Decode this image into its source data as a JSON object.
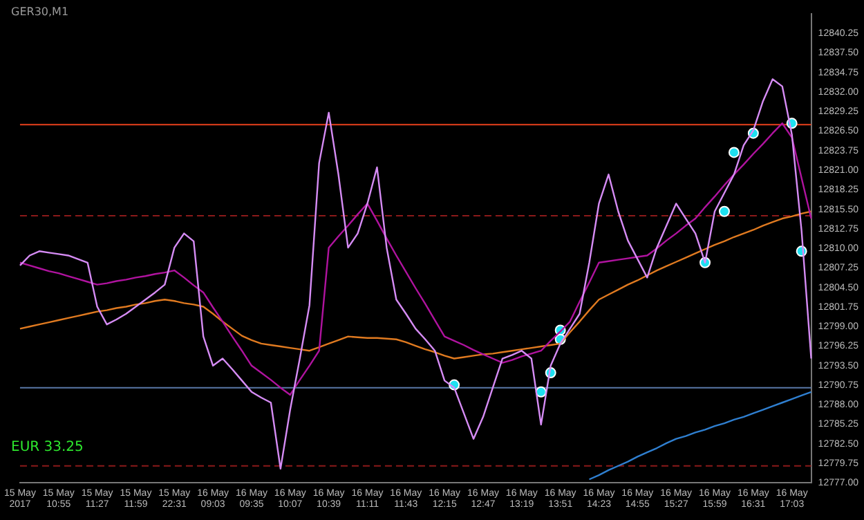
{
  "chart_data": {
    "type": "line",
    "title": "GER30,M1",
    "annotations": [
      "EUR 33.25"
    ],
    "categories": [
      "15 May 2017",
      null,
      null,
      null,
      "15 May 10:55",
      null,
      null,
      null,
      "15 May 11:27",
      null,
      null,
      null,
      "15 May 11:59",
      null,
      null,
      null,
      "15 May 22:31",
      null,
      null,
      null,
      "16 May 09:03",
      null,
      null,
      null,
      "16 May 09:35",
      null,
      null,
      null,
      "16 May 10:07",
      null,
      null,
      null,
      "16 May 10:39",
      null,
      null,
      null,
      "16 May 11:11",
      null,
      null,
      null,
      "16 May 11:43",
      null,
      null,
      null,
      "16 May 12:15",
      null,
      null,
      null,
      "16 May 12:47",
      null,
      null,
      null,
      "16 May 13:19",
      null,
      null,
      null,
      "16 May 13:51",
      null,
      null,
      null,
      "16 May 14:23",
      null,
      null,
      null,
      "16 May 14:55",
      null,
      null,
      null,
      "16 May 15:27",
      null,
      null,
      null,
      "16 May 15:59",
      null,
      null,
      null,
      "16 May 16:31",
      null,
      null,
      null,
      "16 May 17:03",
      null,
      null
    ],
    "series": [
      {
        "color": "#d68cf5",
        "values": [
          12807.6,
          12809.0,
          12809.6,
          12809.4,
          12809.2,
          12809.0,
          12808.5,
          12808.0,
          12801.8,
          12799.3,
          12800.0,
          12800.8,
          12801.8,
          12802.8,
          12803.8,
          12804.9,
          12810.1,
          12812.1,
          12811.0,
          12797.6,
          12793.5,
          12794.5,
          12793.0,
          12791.4,
          12789.8,
          12789.0,
          12788.3,
          12779.0,
          12787.3,
          12794.5,
          12802.0,
          12822.0,
          12829.1,
          12820.4,
          12810.1,
          12812.1,
          12816.3,
          12821.4,
          12810.1,
          12802.8,
          12800.8,
          12798.7,
          12797.2,
          12795.6,
          12791.4,
          12790.4,
          12786.8,
          12783.2,
          12786.3,
          12790.4,
          12794.5,
          12795.0,
          12795.6,
          12794.5,
          12785.2,
          12793.5,
          12796.6,
          12798.7,
          12800.8,
          12808.0,
          12816.3,
          12820.4,
          12815.2,
          12811.1,
          12808.5,
          12805.9,
          12810.1,
          12813.2,
          12816.3,
          12814.2,
          12812.1,
          12808.0,
          12815.2,
          12817.8,
          12820.4,
          12824.5,
          12826.6,
          12830.7,
          12833.8,
          12832.8,
          12826.0,
          12812.5,
          12794.5
        ]
      },
      {
        "color": "#b0139f",
        "values": [
          12808.0,
          12807.6,
          12807.2,
          12806.8,
          12806.5,
          12806.1,
          12805.7,
          12805.3,
          12804.9,
          12805.1,
          12805.4,
          12805.6,
          12805.9,
          12806.1,
          12806.4,
          12806.6,
          12806.9,
          12805.9,
          12804.8,
          12803.8,
          12801.7,
          12799.7,
          12797.6,
          12795.6,
          12793.5,
          12792.5,
          12791.5,
          12790.4,
          12789.4,
          12791.5,
          12793.5,
          12795.6,
          12810.1,
          12811.7,
          12813.2,
          12814.8,
          12816.3,
          12813.9,
          12811.4,
          12809.0,
          12806.7,
          12804.4,
          12802.2,
          12799.9,
          12797.6,
          12797.0,
          12796.4,
          12795.7,
          12795.1,
          12794.5,
          12793.9,
          12794.3,
          12794.8,
          12795.2,
          12795.6,
          12797.0,
          12798.3,
          12799.7,
          12802.5,
          12805.2,
          12808.0,
          12808.2,
          12808.4,
          12808.6,
          12808.8,
          12809.0,
          12810.0,
          12811.1,
          12812.1,
          12813.2,
          12814.2,
          12815.8,
          12817.3,
          12818.9,
          12820.4,
          12821.8,
          12823.3,
          12824.7,
          12826.2,
          12827.6,
          12825.6,
          12819.9,
          12814.2
        ]
      },
      {
        "color": "#e07a20",
        "values": [
          12798.7,
          12799.0,
          12799.3,
          12799.6,
          12799.9,
          12800.2,
          12800.5,
          12800.8,
          12801.1,
          12801.3,
          12801.6,
          12801.8,
          12802.1,
          12802.3,
          12802.6,
          12802.8,
          12802.6,
          12802.3,
          12802.1,
          12801.8,
          12800.8,
          12799.7,
          12798.7,
          12797.7,
          12797.1,
          12796.6,
          12796.4,
          12796.2,
          12796.0,
          12795.8,
          12795.6,
          12796.1,
          12796.6,
          12797.1,
          12797.6,
          12797.5,
          12797.4,
          12797.4,
          12797.3,
          12797.2,
          12796.8,
          12796.3,
          12795.8,
          12795.4,
          12794.9,
          12794.5,
          12794.7,
          12794.9,
          12795.1,
          12795.2,
          12795.4,
          12795.6,
          12795.8,
          12796.0,
          12796.2,
          12796.4,
          12796.6,
          12798.2,
          12799.7,
          12801.3,
          12802.8,
          12803.5,
          12804.2,
          12804.9,
          12805.5,
          12806.2,
          12806.9,
          12807.5,
          12808.1,
          12808.7,
          12809.3,
          12809.9,
          12810.5,
          12811.0,
          12811.6,
          12812.1,
          12812.6,
          12813.2,
          12813.7,
          12814.2,
          12814.5,
          12814.9,
          12815.2
        ]
      },
      {
        "color": "#2f7fd0",
        "values": [
          null,
          null,
          null,
          null,
          null,
          null,
          null,
          null,
          null,
          null,
          null,
          null,
          null,
          null,
          null,
          null,
          null,
          null,
          null,
          null,
          null,
          null,
          null,
          null,
          null,
          null,
          null,
          null,
          null,
          null,
          null,
          null,
          null,
          null,
          null,
          null,
          null,
          null,
          null,
          null,
          null,
          null,
          null,
          null,
          null,
          null,
          null,
          null,
          null,
          null,
          null,
          null,
          null,
          null,
          null,
          null,
          null,
          null,
          null,
          12777.5,
          12778.1,
          12778.8,
          12779.4,
          12780.0,
          12780.7,
          12781.3,
          12781.9,
          12782.6,
          12783.2,
          12783.6,
          12784.1,
          12784.5,
          12785.0,
          12785.4,
          12785.9,
          12786.3,
          12786.8,
          12787.3,
          12787.8,
          12788.3,
          12788.8,
          12789.3,
          12789.8
        ]
      },
      {
        "type": "scatter",
        "color": "#1ee0f0",
        "marker": "circle",
        "values": [
          null,
          null,
          null,
          null,
          null,
          null,
          null,
          null,
          null,
          null,
          null,
          null,
          null,
          null,
          null,
          null,
          null,
          null,
          null,
          null,
          null,
          null,
          null,
          null,
          null,
          null,
          null,
          null,
          null,
          null,
          null,
          null,
          null,
          null,
          null,
          null,
          null,
          null,
          null,
          null,
          null,
          null,
          null,
          null,
          null,
          12790.8,
          null,
          null,
          null,
          null,
          null,
          null,
          null,
          null,
          12789.8,
          12792.5,
          12797.2,
          null,
          null,
          null,
          null,
          null,
          null,
          null,
          null,
          null,
          null,
          null,
          null,
          null,
          null,
          12808.0,
          null,
          12815.2,
          12823.5,
          null,
          12826.2,
          null,
          null,
          null,
          12827.6,
          12809.6,
          null
        ]
      },
      {
        "type": "scatter",
        "color": "#1ee0f0",
        "marker": "circle",
        "values": [
          null,
          null,
          null,
          null,
          null,
          null,
          null,
          null,
          null,
          null,
          null,
          null,
          null,
          null,
          null,
          null,
          null,
          null,
          null,
          null,
          null,
          null,
          null,
          null,
          null,
          null,
          null,
          null,
          null,
          null,
          null,
          null,
          null,
          null,
          null,
          null,
          null,
          null,
          null,
          null,
          null,
          null,
          null,
          null,
          null,
          null,
          null,
          null,
          null,
          null,
          null,
          null,
          null,
          null,
          null,
          null,
          12798.5,
          null,
          null,
          null,
          null,
          null,
          null,
          null,
          null,
          null,
          null,
          null,
          null,
          null,
          null,
          null,
          null,
          null,
          null,
          null,
          null,
          null,
          null,
          null,
          null,
          null,
          null
        ]
      }
    ],
    "ref_lines": [
      {
        "axis": "y",
        "value": 12827.4,
        "color": "#e8401c",
        "line_style": "solid"
      },
      {
        "axis": "y",
        "value": 12814.6,
        "color": "#8b1a1a",
        "line_style": "dashed"
      },
      {
        "axis": "y",
        "value": 12790.4,
        "color": "#5a78a8",
        "line_style": "solid"
      },
      {
        "axis": "y",
        "value": 12779.4,
        "color": "#8b1a1a",
        "line_style": "dashed"
      }
    ],
    "ylim": [
      12777,
      12843
    ],
    "yticks": [
      {
        "value": 12777,
        "label": "12777.00"
      },
      {
        "value": 12779.75,
        "label": "12779.75"
      },
      {
        "value": 12782.5,
        "label": "12782.50"
      },
      {
        "value": 12785.25,
        "label": "12785.25"
      },
      {
        "value": 12788,
        "label": "12788.00"
      },
      {
        "value": 12790.75,
        "label": "12790.75"
      },
      {
        "value": 12793.5,
        "label": "12793.50"
      },
      {
        "value": 12796.25,
        "label": "12796.25"
      },
      {
        "value": 12799,
        "label": "12799.00"
      },
      {
        "value": 12801.75,
        "label": "12801.75"
      },
      {
        "value": 12804.5,
        "label": "12804.50"
      },
      {
        "value": 12807.25,
        "label": "12807.25"
      },
      {
        "value": 12810,
        "label": "12810.00"
      },
      {
        "value": 12812.75,
        "label": "12812.75"
      },
      {
        "value": 12815.5,
        "label": "12815.50"
      },
      {
        "value": 12818.25,
        "label": "12818.25"
      },
      {
        "value": 12821,
        "label": "12821.00"
      },
      {
        "value": 12823.75,
        "label": "12823.75"
      },
      {
        "value": 12826.5,
        "label": "12826.50"
      },
      {
        "value": 12829.25,
        "label": "12829.25"
      },
      {
        "value": 12832,
        "label": "12832.00"
      },
      {
        "value": 12834.75,
        "label": "12834.75"
      },
      {
        "value": 12837.5,
        "label": "12837.50"
      },
      {
        "value": 12840.25,
        "label": "12840.25"
      }
    ],
    "grid": false,
    "legend": false,
    "line_style": "solid"
  }
}
